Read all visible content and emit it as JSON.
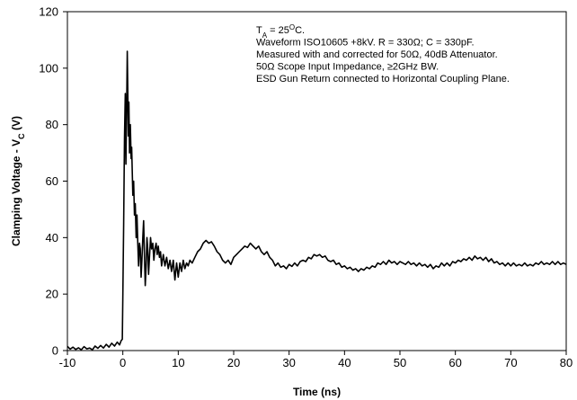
{
  "chart_data": {
    "type": "line",
    "title": "",
    "xlabel": "Time (ns)",
    "ylabel_parts": [
      "Clamping Voltage - V",
      "C",
      " (V)"
    ],
    "xlim": [
      -10,
      80
    ],
    "ylim": [
      0,
      120
    ],
    "xticks": [
      -10,
      0,
      10,
      20,
      30,
      40,
      50,
      60,
      70,
      80
    ],
    "yticks": [
      0,
      20,
      40,
      60,
      80,
      100,
      120
    ],
    "grid": false,
    "legend": "none",
    "line_color": "#000000",
    "annotation": [
      {
        "parts": [
          [
            "T",
            ""
          ],
          [
            "A",
            "sub"
          ],
          [
            " = 25",
            ""
          ],
          [
            "O",
            "sup"
          ],
          [
            "C.",
            ""
          ]
        ]
      },
      {
        "parts": [
          [
            "Waveform ISO10605 +8kV. R = 330Ω; C = 330pF.",
            ""
          ]
        ]
      },
      {
        "parts": [
          [
            "Measured with and corrected for 50Ω, 40dB Attenuator.",
            ""
          ]
        ]
      },
      {
        "parts": [
          [
            "50Ω Scope Input Impedance, ≥2GHz BW.",
            ""
          ]
        ]
      },
      {
        "parts": [
          [
            "ESD Gun Return connected to Horizontal Coupling Plane.",
            ""
          ]
        ]
      }
    ],
    "series": [
      {
        "points": [
          [
            -10,
            1.5
          ],
          [
            -9.5,
            0.5
          ],
          [
            -9,
            1.2
          ],
          [
            -8.5,
            0.4
          ],
          [
            -8,
            1.0
          ],
          [
            -7.5,
            0.3
          ],
          [
            -7,
            1.4
          ],
          [
            -6.5,
            0.6
          ],
          [
            -6,
            0.9
          ],
          [
            -5.5,
            0.3
          ],
          [
            -5,
            1.6
          ],
          [
            -4.5,
            0.8
          ],
          [
            -4,
            1.8
          ],
          [
            -3.5,
            0.9
          ],
          [
            -3,
            2.2
          ],
          [
            -2.5,
            1.2
          ],
          [
            -2,
            2.6
          ],
          [
            -1.5,
            1.6
          ],
          [
            -1,
            3.0
          ],
          [
            -0.6,
            2.0
          ],
          [
            -0.3,
            3.5
          ],
          [
            -0.1,
            4.0
          ],
          [
            0.0,
            20
          ],
          [
            0.15,
            45
          ],
          [
            0.3,
            75
          ],
          [
            0.45,
            91
          ],
          [
            0.55,
            66
          ],
          [
            0.7,
            88
          ],
          [
            0.8,
            106
          ],
          [
            0.9,
            92
          ],
          [
            1.0,
            76
          ],
          [
            1.1,
            88
          ],
          [
            1.2,
            70
          ],
          [
            1.35,
            80
          ],
          [
            1.5,
            68
          ],
          [
            1.6,
            72
          ],
          [
            1.8,
            55
          ],
          [
            1.95,
            60
          ],
          [
            2.1,
            48
          ],
          [
            2.25,
            52
          ],
          [
            2.4,
            40
          ],
          [
            2.55,
            48
          ],
          [
            2.7,
            38
          ],
          [
            2.85,
            30
          ],
          [
            3.0,
            38
          ],
          [
            3.15,
            36
          ],
          [
            3.3,
            26
          ],
          [
            3.45,
            32
          ],
          [
            3.6,
            40
          ],
          [
            3.75,
            46
          ],
          [
            3.9,
            34
          ],
          [
            4.05,
            23
          ],
          [
            4.2,
            30
          ],
          [
            4.35,
            40
          ],
          [
            4.5,
            36
          ],
          [
            4.65,
            27
          ],
          [
            4.8,
            33
          ],
          [
            5.0,
            40
          ],
          [
            5.2,
            36
          ],
          [
            5.4,
            38
          ],
          [
            5.6,
            32
          ],
          [
            5.8,
            36
          ],
          [
            6.0,
            38
          ],
          [
            6.2,
            34
          ],
          [
            6.4,
            37
          ],
          [
            6.6,
            33
          ],
          [
            6.8,
            35
          ],
          [
            7.0,
            30
          ],
          [
            7.3,
            34
          ],
          [
            7.6,
            30
          ],
          [
            7.9,
            33
          ],
          [
            8.2,
            29
          ],
          [
            8.5,
            32
          ],
          [
            8.8,
            28
          ],
          [
            9.1,
            32
          ],
          [
            9.4,
            25
          ],
          [
            9.7,
            31
          ],
          [
            10.0,
            26
          ],
          [
            10.3,
            31
          ],
          [
            10.6,
            28
          ],
          [
            10.9,
            32
          ],
          [
            11.2,
            29
          ],
          [
            11.5,
            31
          ],
          [
            11.8,
            30
          ],
          [
            12.1,
            32
          ],
          [
            12.5,
            31
          ],
          [
            13.0,
            33
          ],
          [
            13.5,
            35
          ],
          [
            14.0,
            36
          ],
          [
            14.5,
            38
          ],
          [
            15.0,
            39
          ],
          [
            15.5,
            38
          ],
          [
            16.0,
            38.5
          ],
          [
            16.5,
            37
          ],
          [
            17.0,
            35
          ],
          [
            17.5,
            34
          ],
          [
            18.0,
            32
          ],
          [
            18.5,
            31
          ],
          [
            19.0,
            32
          ],
          [
            19.5,
            30.5
          ],
          [
            20.0,
            33
          ],
          [
            20.5,
            34
          ],
          [
            21.0,
            35
          ],
          [
            21.5,
            36
          ],
          [
            22.0,
            37
          ],
          [
            22.5,
            36.5
          ],
          [
            23.0,
            38
          ],
          [
            23.5,
            37
          ],
          [
            24.0,
            36
          ],
          [
            24.5,
            37
          ],
          [
            25.0,
            35
          ],
          [
            25.5,
            34
          ],
          [
            26.0,
            35
          ],
          [
            26.5,
            33
          ],
          [
            27.0,
            32
          ],
          [
            27.5,
            30
          ],
          [
            28.0,
            31
          ],
          [
            28.5,
            29.5
          ],
          [
            29.0,
            30
          ],
          [
            29.5,
            29
          ],
          [
            30.0,
            30.5
          ],
          [
            30.5,
            29.8
          ],
          [
            31.0,
            31
          ],
          [
            31.5,
            30
          ],
          [
            32.0,
            31.5
          ],
          [
            32.5,
            32
          ],
          [
            33.0,
            31.5
          ],
          [
            33.5,
            33
          ],
          [
            34.0,
            32.5
          ],
          [
            34.5,
            34
          ],
          [
            35.0,
            33.5
          ],
          [
            35.5,
            34
          ],
          [
            36.0,
            33
          ],
          [
            36.5,
            33.5
          ],
          [
            37.0,
            32
          ],
          [
            37.5,
            31.5
          ],
          [
            38.0,
            32
          ],
          [
            38.5,
            30.5
          ],
          [
            39.0,
            31
          ],
          [
            39.5,
            29.5
          ],
          [
            40.0,
            30
          ],
          [
            40.5,
            29
          ],
          [
            41.0,
            29.5
          ],
          [
            41.5,
            28.5
          ],
          [
            42.0,
            29
          ],
          [
            42.5,
            28
          ],
          [
            43.0,
            29
          ],
          [
            43.5,
            28.5
          ],
          [
            44.0,
            29.5
          ],
          [
            44.5,
            29
          ],
          [
            45.0,
            30
          ],
          [
            45.5,
            29.5
          ],
          [
            46.0,
            31
          ],
          [
            46.5,
            30.5
          ],
          [
            47.0,
            31.5
          ],
          [
            47.5,
            30.5
          ],
          [
            48.0,
            32
          ],
          [
            48.5,
            31
          ],
          [
            49.0,
            31.5
          ],
          [
            49.5,
            30.5
          ],
          [
            50.0,
            31.5
          ],
          [
            50.5,
            31
          ],
          [
            51.0,
            30.5
          ],
          [
            51.5,
            31.5
          ],
          [
            52.0,
            30.5
          ],
          [
            52.5,
            31
          ],
          [
            53.0,
            30
          ],
          [
            53.5,
            31
          ],
          [
            54.0,
            30
          ],
          [
            54.5,
            30.5
          ],
          [
            55.0,
            29.5
          ],
          [
            55.5,
            30.5
          ],
          [
            56.0,
            29
          ],
          [
            56.5,
            30
          ],
          [
            57.0,
            29.5
          ],
          [
            57.5,
            31
          ],
          [
            58.0,
            30
          ],
          [
            58.5,
            31
          ],
          [
            59.0,
            30
          ],
          [
            59.5,
            31.5
          ],
          [
            60.0,
            31
          ],
          [
            60.5,
            32
          ],
          [
            61.0,
            31.5
          ],
          [
            61.5,
            32.5
          ],
          [
            62.0,
            32
          ],
          [
            62.5,
            33
          ],
          [
            63.0,
            32
          ],
          [
            63.5,
            33.5
          ],
          [
            64.0,
            32.5
          ],
          [
            64.5,
            33
          ],
          [
            65.0,
            32
          ],
          [
            65.5,
            33
          ],
          [
            66.0,
            31.5
          ],
          [
            66.5,
            32.5
          ],
          [
            67.0,
            31
          ],
          [
            67.5,
            31.5
          ],
          [
            68.0,
            30.5
          ],
          [
            68.5,
            31
          ],
          [
            69.0,
            30
          ],
          [
            69.5,
            31
          ],
          [
            70.0,
            30
          ],
          [
            70.5,
            31
          ],
          [
            71.0,
            30
          ],
          [
            71.5,
            30.5
          ],
          [
            72.0,
            30
          ],
          [
            72.5,
            31
          ],
          [
            73.0,
            30
          ],
          [
            73.5,
            30.5
          ],
          [
            74.0,
            30
          ],
          [
            74.5,
            31
          ],
          [
            75.0,
            30.5
          ],
          [
            75.5,
            31.5
          ],
          [
            76.0,
            30.5
          ],
          [
            76.5,
            31
          ],
          [
            77.0,
            30.5
          ],
          [
            77.5,
            31.5
          ],
          [
            78.0,
            30.5
          ],
          [
            78.5,
            31.5
          ],
          [
            79.0,
            30.5
          ],
          [
            79.5,
            31
          ],
          [
            80.0,
            30.5
          ]
        ]
      }
    ]
  }
}
